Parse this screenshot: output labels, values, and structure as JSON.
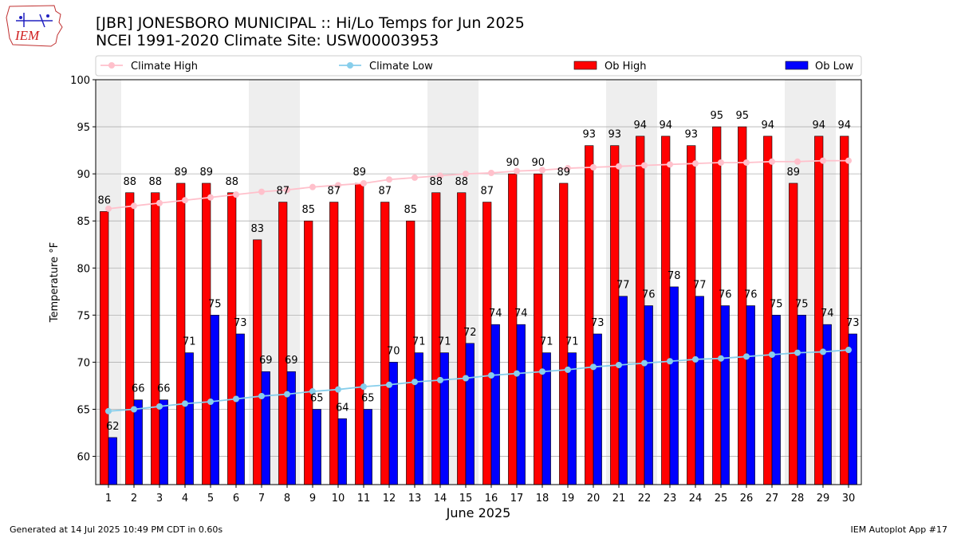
{
  "header": {
    "title_line1": "[JBR] JONESBORO MUNICIPAL :: Hi/Lo Temps for Jun 2025",
    "title_line2": "NCEI 1991-2020 Climate Site: USW00003953",
    "logo_text": "IEM"
  },
  "footer": {
    "generated": "Generated at 14 Jul 2025 10:49 PM CDT in 0.60s",
    "app": "IEM Autoplot App #17"
  },
  "colors": {
    "ob_high": "#ff0000",
    "ob_low": "#0000ff",
    "climate_high": "#ffc0cb",
    "climate_low": "#87ceeb",
    "weekend_band": "#eeeeee",
    "grid": "#b0b0b0"
  },
  "chart_data": {
    "type": "bar",
    "xlabel": "June 2025",
    "ylabel": "Temperature °F",
    "ylim": [
      57,
      100
    ],
    "yticks": [
      60,
      65,
      70,
      75,
      80,
      85,
      90,
      95,
      100
    ],
    "grid": true,
    "legend_position": "top",
    "categories": [
      "1",
      "2",
      "3",
      "4",
      "5",
      "6",
      "7",
      "8",
      "9",
      "10",
      "11",
      "12",
      "13",
      "14",
      "15",
      "16",
      "17",
      "18",
      "19",
      "20",
      "21",
      "22",
      "23",
      "24",
      "25",
      "26",
      "27",
      "28",
      "29",
      "30"
    ],
    "weekend_days": [
      1,
      7,
      8,
      14,
      15,
      21,
      22,
      28,
      29
    ],
    "series": [
      {
        "name": "Climate High",
        "kind": "line",
        "values": [
          86.3,
          86.6,
          86.9,
          87.2,
          87.5,
          87.8,
          88.1,
          88.3,
          88.6,
          88.8,
          89.0,
          89.4,
          89.6,
          89.8,
          90.0,
          90.1,
          90.3,
          90.4,
          90.6,
          90.7,
          90.8,
          90.9,
          91.0,
          91.1,
          91.2,
          91.2,
          91.3,
          91.3,
          91.4,
          91.4
        ]
      },
      {
        "name": "Climate Low",
        "kind": "line",
        "values": [
          64.8,
          65.0,
          65.3,
          65.6,
          65.8,
          66.1,
          66.4,
          66.6,
          66.9,
          67.1,
          67.4,
          67.6,
          67.9,
          68.1,
          68.3,
          68.6,
          68.8,
          69.0,
          69.2,
          69.5,
          69.7,
          69.9,
          70.1,
          70.3,
          70.4,
          70.6,
          70.8,
          71.0,
          71.1,
          71.3
        ]
      },
      {
        "name": "Ob High",
        "kind": "bar",
        "values": [
          86,
          88,
          88,
          89,
          89,
          88,
          83,
          87,
          85,
          87,
          89,
          87,
          85,
          88,
          88,
          87,
          90,
          90,
          89,
          93,
          93,
          94,
          94,
          93,
          95,
          95,
          94,
          89,
          94,
          94
        ]
      },
      {
        "name": "Ob Low",
        "kind": "bar",
        "values": [
          62,
          66,
          66,
          71,
          75,
          73,
          69,
          69,
          65,
          64,
          65,
          70,
          71,
          71,
          72,
          74,
          74,
          71,
          71,
          73,
          77,
          76,
          78,
          77,
          76,
          76,
          75,
          75,
          74,
          73
        ]
      }
    ]
  }
}
